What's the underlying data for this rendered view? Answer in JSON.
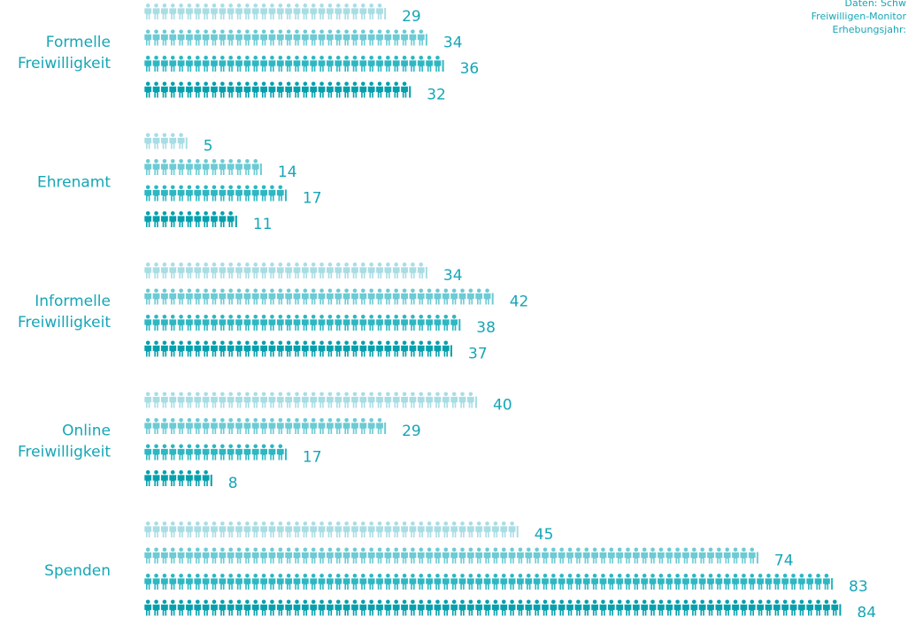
{
  "source": {
    "line1": "Daten: Schw",
    "line2": "Freiwilligen-Monitor",
    "line3": "Erhebungsjahr:"
  },
  "chart_data": {
    "type": "bar",
    "orientation": "horizontal",
    "style": "pictogram",
    "categories": [
      "Formelle\nFreiwilligkeit",
      "Ehrenamt",
      "Informelle\nFreiwilligkeit",
      "Online\nFreiwilligkeit",
      "Spenden"
    ],
    "series": [
      {
        "values": [
          29,
          5,
          34,
          40,
          45
        ],
        "color": "#a9dde4"
      },
      {
        "values": [
          34,
          14,
          42,
          29,
          74
        ],
        "color": "#6ccbd4"
      },
      {
        "values": [
          36,
          17,
          38,
          17,
          83
        ],
        "color": "#2eb7c2"
      },
      {
        "values": [
          32,
          11,
          37,
          8,
          84
        ],
        "color": "#06a0ad"
      }
    ]
  }
}
